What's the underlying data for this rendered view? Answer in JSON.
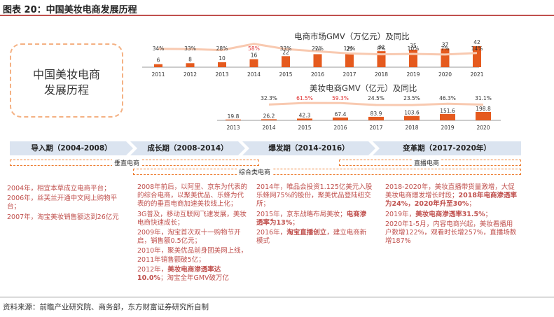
{
  "figure_title": "图表 20：中国美妆电商发展历程",
  "box_title_line1": "中国美妆电商",
  "box_title_line2": "发展历程",
  "colors": {
    "bar": "#e55a1e",
    "line": "#f8c9b0",
    "highlight_pct": "#e03030",
    "phase_fill": "#dbe4f0",
    "accent": "#c0504d"
  },
  "chart_data": [
    {
      "type": "bar",
      "title": "电商市场GMV（万亿元）及同比",
      "categories": [
        "2011",
        "2012",
        "2013",
        "2014",
        "2015",
        "2016",
        "2017",
        "2018",
        "2019",
        "2020",
        "2021"
      ],
      "values": [
        6,
        8,
        10,
        16,
        22,
        26,
        29,
        32,
        35,
        37,
        42
      ],
      "yoy_labels": [
        "34%",
        "33%",
        "28%",
        "58%",
        "33%",
        "22%",
        "12%",
        "8%",
        "10%",
        "7%",
        "14%"
      ],
      "yoy_values": [
        34,
        33,
        28,
        58,
        33,
        22,
        12,
        8,
        10,
        7,
        14
      ],
      "highlight_index": 3
    },
    {
      "type": "bar",
      "title": "美妆电商GMV（亿元）及同比",
      "categories": [
        "2013",
        "2014",
        "2015",
        "2016",
        "2017",
        "2018",
        "2019",
        "2020"
      ],
      "values": [
        19.8,
        26.2,
        42.3,
        67.4,
        83.9,
        103.6,
        151.6,
        198.8
      ],
      "value_labels": [
        "19.8",
        "26.2",
        "42.3",
        "67.4",
        "83.9",
        "103.6",
        "151.6",
        "198.8"
      ],
      "yoy_labels": [
        "",
        "32.3%",
        "61.5%",
        "59.3%",
        "24.5%",
        "23.5%",
        "46.3%",
        "31.1%"
      ],
      "yoy_values": [
        null,
        32.3,
        61.5,
        59.3,
        24.5,
        23.5,
        46.3,
        31.1
      ],
      "highlight_indices": [
        2,
        3
      ]
    }
  ],
  "phases": [
    {
      "label": "导入期（2004-2008）"
    },
    {
      "label": "成长期（2008-2014）"
    },
    {
      "label": "爆发期（2014-2016）"
    },
    {
      "label": "变革期（2017-2020年）"
    }
  ],
  "channels": {
    "vertical": "垂直电商",
    "comprehensive": "综合类电商",
    "live": "直播电商"
  },
  "columns": [
    [
      {
        "text": "2004年，相宜本草成立电商平台；",
        "bold": ""
      },
      {
        "text": "2006年，丝芙兰开通中文网上购物平台；",
        "bold": ""
      },
      {
        "text": "2007年，淘宝美妆销售额达到26亿元",
        "bold": ""
      }
    ],
    [
      {
        "text": "2008年前后，以阿里、京东为代表的的综合电商，以聚美优品、乐蜂为代表的的垂直电商加速美妆线上化；",
        "bold": ""
      },
      {
        "text": "3G普及，移动互联网飞速发展，美妆电商快速成长；",
        "bold": ""
      },
      {
        "text": "2009年，淘宝首次双十一购物节开启，销售额0.5亿元；",
        "bold": ""
      },
      {
        "text": "2010年，聚美优品前身团美网上线，2011年销售额破5亿；",
        "bold": ""
      },
      {
        "text": "2012年，",
        "bold": "美妆电商渗透率达10.0%",
        "tail": "；淘宝全年GMV破万亿"
      }
    ],
    [
      {
        "text": "2014年，唯品会投资1.125亿美元入股乐蜂网75%的股份，聚美优品登陆纽交所；",
        "bold": ""
      },
      {
        "text": "2015年，京东战略布局美妆；",
        "bold": "电商渗透率为13%",
        "tail": "；"
      },
      {
        "text": "2016年，",
        "bold": "淘宝直播创立",
        "tail": "，建立电商新模式"
      }
    ],
    [
      {
        "text": "2018-2020年，美妆直播带货量激增，大促美妆电商爆发增长时段；",
        "bold": "2018年电商渗透率为24%，2020年升至30%",
        "tail": "；"
      },
      {
        "text": "2019年，",
        "bold": "美妆电商渗透率31.5%",
        "tail": "；"
      },
      {
        "text": "2020年1-5月，内容电商兴起，美妆看播用户数增122%，观看时长增257%，直播场数增187%",
        "bold": ""
      }
    ]
  ],
  "source": "资料来源：前瞻产业研究院、商务部，东方财富证券研究所自制"
}
